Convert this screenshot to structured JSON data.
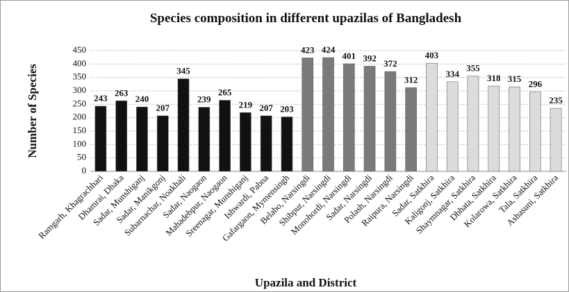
{
  "chart_data": {
    "type": "bar",
    "title": "Species composition in different upazilas of Bangladesh",
    "x_label": "Upazila and District",
    "y_label": "Number of Species",
    "categories": [
      "Ramgarh, Khagrachhari",
      "Dhamrai, Dhaka",
      "Sadar, Munshiganj",
      "Sadar, Manikgonj",
      "Subarnachar, Noakhali",
      "Sadar, Naogaon",
      "Mahadebpur, Naogaon",
      "Sreenagar, Munshiganj",
      "Ishwardi, Pabna",
      "Gafargaon, Mymensingh",
      "Belabo, Narsingdi",
      "Shibpur, Narsingdi",
      "Monohordi, Narsingdi",
      "Sadar, Narsingdi",
      "Polash, Narsingdi",
      "Raipura, Narsingdi",
      "Sadar, Satkhira",
      "Kaligonj, Satkhira",
      "Shaymnagar, Satkhira",
      "Dbhata, Satkhira",
      "Kolarowa, Satkhira",
      "Tala, Satkhira",
      "Ashasuni, Satkhira"
    ],
    "values": [
      243,
      263,
      240,
      207,
      345,
      239,
      265,
      219,
      207,
      203,
      423,
      424,
      401,
      392,
      372,
      312,
      403,
      334,
      355,
      318,
      315,
      296,
      235
    ],
    "colors": [
      "#111111",
      "#111111",
      "#111111",
      "#111111",
      "#111111",
      "#111111",
      "#111111",
      "#111111",
      "#111111",
      "#111111",
      "#7a7a7a",
      "#7a7a7a",
      "#7a7a7a",
      "#7a7a7a",
      "#7a7a7a",
      "#7a7a7a",
      "#dcdcdc",
      "#dcdcdc",
      "#dcdcdc",
      "#dcdcdc",
      "#dcdcdc",
      "#dcdcdc",
      "#dcdcdc"
    ],
    "ylim": [
      0,
      450
    ],
    "yticks": [
      0,
      50,
      100,
      150,
      200,
      250,
      300,
      350,
      400,
      450
    ],
    "grid": true
  }
}
